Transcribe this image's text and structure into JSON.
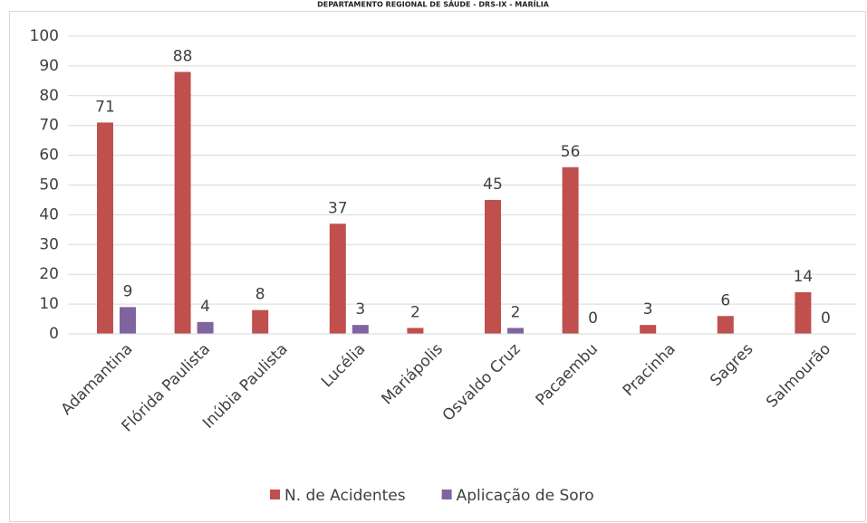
{
  "chart_data": {
    "type": "bar",
    "title": "DEPARTAMENTO REGIONAL DE SÁUDE - DRS-IX - MARÍLIA",
    "categories": [
      "Adamantina",
      "Flórida Paulista",
      "Inúbia Paulista",
      "Lucélia",
      "Mariápolis",
      "Osvaldo Cruz",
      "Pacaembu",
      "Pracinha",
      "Sagres",
      "Salmourão"
    ],
    "series": [
      {
        "name": "N. de Acidentes",
        "color": "#c0504d",
        "values": [
          71,
          88,
          8,
          37,
          2,
          45,
          56,
          3,
          6,
          14
        ]
      },
      {
        "name": "Aplicação de Soro",
        "color": "#8064a2",
        "values": [
          9,
          4,
          null,
          3,
          null,
          2,
          0,
          null,
          null,
          0
        ]
      }
    ],
    "ylim": [
      0,
      100
    ],
    "yticks": [
      0,
      10,
      20,
      30,
      40,
      50,
      60,
      70,
      80,
      90,
      100
    ],
    "grid": true,
    "legend": "bottom"
  }
}
